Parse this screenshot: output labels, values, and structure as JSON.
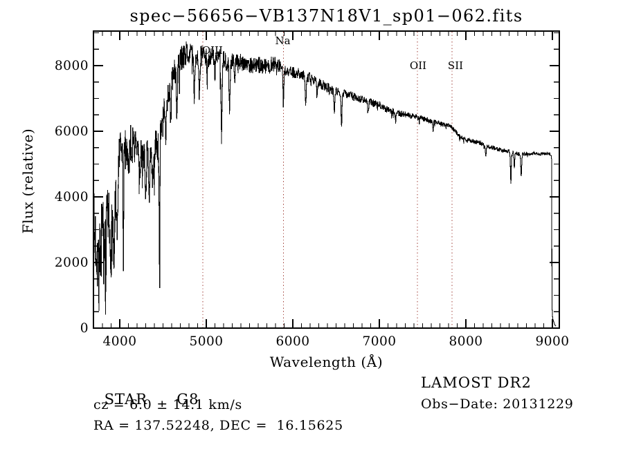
{
  "title": "spec−56656−VB137N18V1_sp01−062.fits",
  "footer": {
    "star_class": "STAR",
    "star_subclass": "G8",
    "cz_line": "cz = 6.0 ± 14.1 km/s",
    "radec_line": "RA = 137.52248, DEC =  16.15625",
    "survey_release": "LAMOST DR2",
    "obs_date": "Obs−Date: 20131229"
  },
  "chart_data": {
    "type": "line",
    "title": "spec−56656−VB137N18V1_sp01−062.fits",
    "xlabel": "Wavelength (Å)",
    "ylabel": "Flux (relative)",
    "xlim": [
      3696,
      9080
    ],
    "ylim": [
      0,
      9052
    ],
    "x_ticks": [
      4000,
      5000,
      6000,
      7000,
      8000,
      9000
    ],
    "x_minor_step": 100,
    "y_ticks": [
      0,
      2000,
      4000,
      6000,
      8000
    ],
    "y_minor_step": 500,
    "grid": false,
    "legend": null,
    "line_color": "#000000",
    "marker_color": "#9e3a32",
    "line_markers": [
      {
        "label": "OIII",
        "wavelength": 4959,
        "tier": "upper",
        "behind_spectrum": true,
        "label_offset_x": 14
      },
      {
        "label": "Na",
        "wavelength": 5892,
        "tier": "top",
        "behind_spectrum": false,
        "label_offset_x": -1
      },
      {
        "label": "OII",
        "wavelength": 7440,
        "tier": "mid",
        "behind_spectrum": false,
        "label_offset_x": 1
      },
      {
        "label": "SII",
        "wavelength": 7840,
        "tier": "mid",
        "behind_spectrum": false,
        "label_offset_x": 5
      }
    ],
    "sample_step": 3,
    "seed": 7,
    "continuum_envelope": [
      [
        3700,
        2900
      ],
      [
        3740,
        2600
      ],
      [
        3790,
        2700
      ],
      [
        3830,
        2500
      ],
      [
        3870,
        2800
      ],
      [
        3910,
        2700
      ],
      [
        3950,
        3400
      ],
      [
        4000,
        5100
      ],
      [
        4060,
        5300
      ],
      [
        4120,
        5600
      ],
      [
        4180,
        5700
      ],
      [
        4240,
        5500
      ],
      [
        4300,
        5700
      ],
      [
        4360,
        5400
      ],
      [
        4420,
        5600
      ],
      [
        4480,
        6000
      ],
      [
        4540,
        6900
      ],
      [
        4600,
        7600
      ],
      [
        4660,
        8000
      ],
      [
        4720,
        8400
      ],
      [
        4780,
        8600
      ],
      [
        4840,
        8550
      ],
      [
        4900,
        8450
      ],
      [
        4960,
        8400
      ],
      [
        5040,
        8300
      ],
      [
        5120,
        8300
      ],
      [
        5200,
        8150
      ],
      [
        5280,
        8100
      ],
      [
        5360,
        8300
      ],
      [
        5440,
        8150
      ],
      [
        5520,
        8050
      ],
      [
        5600,
        7950
      ],
      [
        5680,
        7900
      ],
      [
        5760,
        7950
      ],
      [
        5840,
        7950
      ],
      [
        5900,
        7850
      ],
      [
        5980,
        7800
      ],
      [
        6060,
        7750
      ],
      [
        6140,
        7650
      ],
      [
        6220,
        7500
      ],
      [
        6300,
        7400
      ],
      [
        6380,
        7300
      ],
      [
        6460,
        7250
      ],
      [
        6540,
        7200
      ],
      [
        6620,
        7150
      ],
      [
        6700,
        7050
      ],
      [
        6780,
        6950
      ],
      [
        6860,
        6900
      ],
      [
        6940,
        6850
      ],
      [
        7020,
        6800
      ],
      [
        7100,
        6700
      ],
      [
        7180,
        6650
      ],
      [
        7260,
        6550
      ],
      [
        7340,
        6500
      ],
      [
        7420,
        6450
      ],
      [
        7500,
        6400
      ],
      [
        7580,
        6350
      ],
      [
        7660,
        6300
      ],
      [
        7740,
        6250
      ],
      [
        7820,
        6180
      ],
      [
        7880,
        6000
      ],
      [
        7940,
        5800
      ],
      [
        8000,
        5750
      ],
      [
        8080,
        5700
      ],
      [
        8160,
        5650
      ],
      [
        8240,
        5570
      ],
      [
        8320,
        5500
      ],
      [
        8400,
        5430
      ],
      [
        8480,
        5380
      ],
      [
        8560,
        5320
      ],
      [
        8640,
        5260
      ],
      [
        8720,
        5300
      ],
      [
        8800,
        5320
      ],
      [
        8880,
        5300
      ],
      [
        8950,
        5320
      ],
      [
        8982,
        5280
      ]
    ],
    "noise_amplitude": [
      [
        3700,
        1350
      ],
      [
        3780,
        1250
      ],
      [
        3860,
        1250
      ],
      [
        3940,
        1000
      ],
      [
        4000,
        650
      ],
      [
        4100,
        600
      ],
      [
        4200,
        600
      ],
      [
        4300,
        620
      ],
      [
        4400,
        580
      ],
      [
        4500,
        520
      ],
      [
        4600,
        460
      ],
      [
        4700,
        400
      ],
      [
        4800,
        350
      ],
      [
        4900,
        340
      ],
      [
        5000,
        320
      ],
      [
        5200,
        300
      ],
      [
        5400,
        280
      ],
      [
        5600,
        260
      ],
      [
        5800,
        230
      ],
      [
        5900,
        190
      ],
      [
        6000,
        170
      ],
      [
        6200,
        160
      ],
      [
        6400,
        150
      ],
      [
        6600,
        130
      ],
      [
        6800,
        120
      ],
      [
        7000,
        110
      ],
      [
        7200,
        100
      ],
      [
        7400,
        90
      ],
      [
        7600,
        80
      ],
      [
        7800,
        75
      ],
      [
        8000,
        70
      ],
      [
        8200,
        65
      ],
      [
        8400,
        60
      ],
      [
        8600,
        55
      ],
      [
        8800,
        50
      ],
      [
        8982,
        45
      ]
    ],
    "absorption_dips": [
      [
        3760,
        10,
        900
      ],
      [
        3830,
        8,
        900
      ],
      [
        3890,
        8,
        1000
      ],
      [
        3934,
        7,
        1300
      ],
      [
        3969,
        7,
        1700
      ],
      [
        4042,
        4,
        3400
      ],
      [
        4102,
        6,
        900
      ],
      [
        4227,
        6,
        800
      ],
      [
        4300,
        7,
        1800
      ],
      [
        4340,
        6,
        900
      ],
      [
        4383,
        5,
        900
      ],
      [
        4455,
        6,
        1100
      ],
      [
        4461,
        3,
        4600
      ],
      [
        4530,
        5,
        900
      ],
      [
        4590,
        5,
        1300
      ],
      [
        4660,
        6,
        1300
      ],
      [
        4861,
        6,
        1200
      ],
      [
        4920,
        5,
        1300
      ],
      [
        5010,
        5,
        800
      ],
      [
        5100,
        4,
        900
      ],
      [
        5176,
        7,
        2350
      ],
      [
        5270,
        6,
        1400
      ],
      [
        5330,
        5,
        800
      ],
      [
        5892,
        5,
        1100
      ],
      [
        6150,
        6,
        800
      ],
      [
        6280,
        5,
        500
      ],
      [
        6480,
        5,
        600
      ],
      [
        6563,
        5,
        1050
      ],
      [
        6870,
        6,
        400
      ],
      [
        7190,
        5,
        300
      ],
      [
        7620,
        5,
        250
      ],
      [
        8230,
        5,
        300
      ],
      [
        8520,
        5,
        950
      ],
      [
        8560,
        4,
        500
      ],
      [
        8640,
        5,
        650
      ]
    ],
    "red_cutoff_tail": [
      [
        8987,
        5250
      ],
      [
        8992,
        5100
      ],
      [
        8995,
        700
      ],
      [
        9003,
        300
      ],
      [
        9015,
        200
      ],
      [
        9030,
        90
      ],
      [
        9040,
        60
      ]
    ]
  }
}
